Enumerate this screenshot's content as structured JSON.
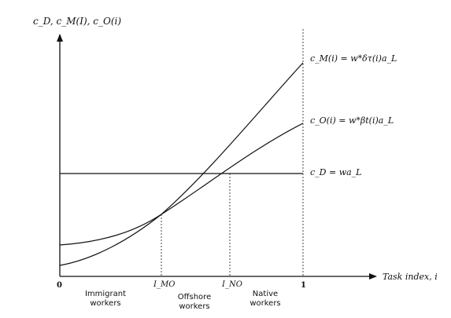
{
  "y_axis_label": "c_D, c_M(I), c_O(i)",
  "x_axis_label": "Task index, i",
  "x_ticks": {
    "zero": "0",
    "i_mo": "I_MO",
    "i_no": "I_NO",
    "one": "1"
  },
  "regions": {
    "immigrant_line1": "Immigrant",
    "immigrant_line2": "workers",
    "offshore_line1": "Offshore",
    "offshore_line2": "workers",
    "native_line1": "Native",
    "native_line2": "workers"
  },
  "curves": {
    "cm": "c_M(i) = w*δτ(i)a_L",
    "co": "c_O(i) = w*βt(i)a_L",
    "cd": "c_D = wa_L"
  }
}
